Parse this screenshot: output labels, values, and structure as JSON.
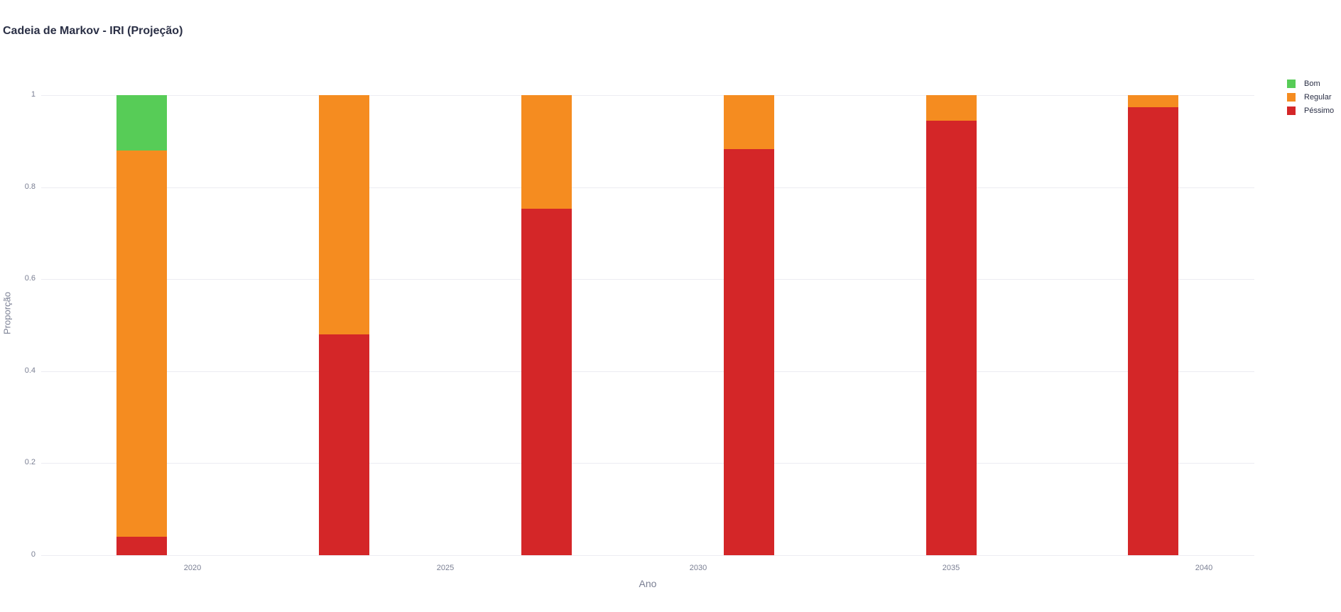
{
  "title": "Cadeia de Markov - IRI (Projeção)",
  "legend": [
    {
      "label": "Bom",
      "color": "#57cc57"
    },
    {
      "label": "Regular",
      "color": "#f58c20"
    },
    {
      "label": "Péssimo",
      "color": "#d42628"
    }
  ],
  "axes": {
    "xlabel": "Ano",
    "ylabel": "Proporção",
    "yticks": [
      "0",
      "0.2",
      "0.4",
      "0.6",
      "0.8",
      "1"
    ],
    "xticks": [
      "2020",
      "2025",
      "2030",
      "2035",
      "2040"
    ]
  },
  "chart_data": {
    "type": "bar",
    "stacked": true,
    "title": "Cadeia de Markov - IRI (Projeção)",
    "xlabel": "Ano",
    "ylabel": "Proporção",
    "ylim": [
      0,
      1
    ],
    "categories": [
      2019,
      2023,
      2027,
      2031,
      2035,
      2039
    ],
    "series": [
      {
        "name": "Péssimo",
        "color": "#d42628",
        "values": [
          0.04,
          0.48,
          0.753,
          0.883,
          0.944,
          0.974
        ]
      },
      {
        "name": "Regular",
        "color": "#f58c20",
        "values": [
          0.84,
          0.52,
          0.247,
          0.117,
          0.056,
          0.026
        ]
      },
      {
        "name": "Bom",
        "color": "#57cc57",
        "values": [
          0.12,
          0.0,
          0.0,
          0.0,
          0.0,
          0.0
        ]
      }
    ],
    "xticks": [
      2020,
      2025,
      2030,
      2035,
      2040
    ],
    "yticks": [
      0,
      0.2,
      0.4,
      0.6,
      0.8,
      1
    ],
    "grid": true,
    "legend_position": "top-right"
  }
}
